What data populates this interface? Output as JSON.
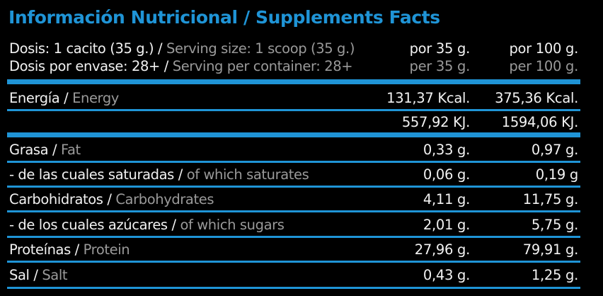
{
  "title": "Información Nutricional / Supplements Facts",
  "accent_color": "#1f94d6",
  "header": {
    "dose_es": "Dosis: 1 cacito (35 g.)",
    "dose_en": "Serving size: 1 scoop (35 g.)",
    "per_container_es": "Dosis por envase: 28+",
    "per_container_en": "Serving per container: 28+",
    "col1_es": "por 35 g.",
    "col1_en": "per 35 g.",
    "col2_es": "por 100 g.",
    "col2_en": "per 100 g."
  },
  "rows": [
    {
      "es": "Energía",
      "en": "Energy",
      "v1": "131,37 Kcal.",
      "v2": "375,36 Kcal."
    },
    {
      "es": "",
      "en": "",
      "v1": "557,92 KJ.",
      "v2": "1594,06 KJ."
    },
    {
      "es": "Grasa",
      "en": "Fat",
      "v1": "0,33 g.",
      "v2": "0,97 g."
    },
    {
      "es": "- de las cuales saturadas",
      "en": "of which saturates",
      "v1": "0,06 g.",
      "v2": "0,19 g"
    },
    {
      "es": "Carbohidratos",
      "en": "Carbohydrates",
      "v1": "4,11 g.",
      "v2": "11,75 g."
    },
    {
      "es": "- de los cuales azúcares",
      "en": "of which sugars",
      "v1": "2,01 g.",
      "v2": "5,75 g."
    },
    {
      "es": "Proteínas",
      "en": "Protein",
      "v1": "27,96 g.",
      "v2": "79,91 g."
    },
    {
      "es": "Sal",
      "en": "Salt",
      "v1": "0,43 g.",
      "v2": "1,25 g."
    }
  ]
}
